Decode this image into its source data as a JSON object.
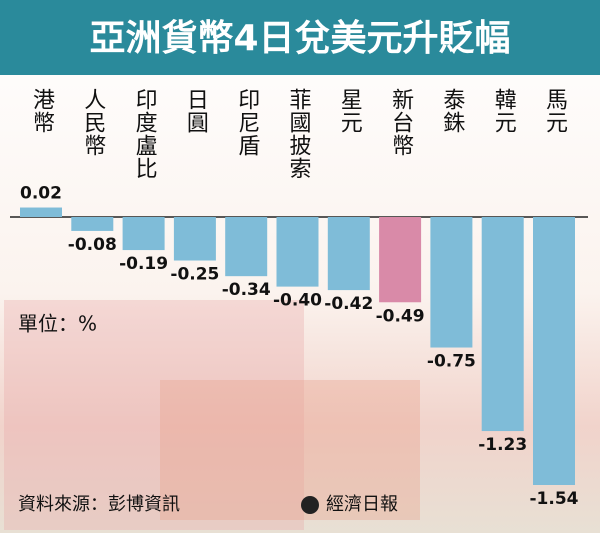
{
  "chart_data": {
    "type": "bar",
    "title": "亞洲貨幣4日兌美元升貶幅",
    "unit_note": "單位：%",
    "source": "資料來源：彭博資訊",
    "publisher": "經濟日報",
    "categories": [
      "港幣",
      "人民幣",
      "印度盧比",
      "日圓",
      "印尼盾",
      "菲國披索",
      "星元",
      "新台幣",
      "泰銖",
      "韓元",
      "馬元"
    ],
    "values": [
      0.02,
      -0.08,
      -0.19,
      -0.25,
      -0.34,
      -0.4,
      -0.42,
      -0.49,
      -0.75,
      -1.23,
      -1.54
    ],
    "value_labels": [
      "0.02",
      "-0.08",
      "-0.19",
      "-0.25",
      "-0.34",
      "-0.40",
      "-0.42",
      "-0.49",
      "-0.75",
      "-1.23",
      "-1.54"
    ],
    "color": "#7fbcd8",
    "highlight": {
      "index": 7,
      "color": "#d98aa8",
      "label_color": "#9b3f78"
    }
  }
}
